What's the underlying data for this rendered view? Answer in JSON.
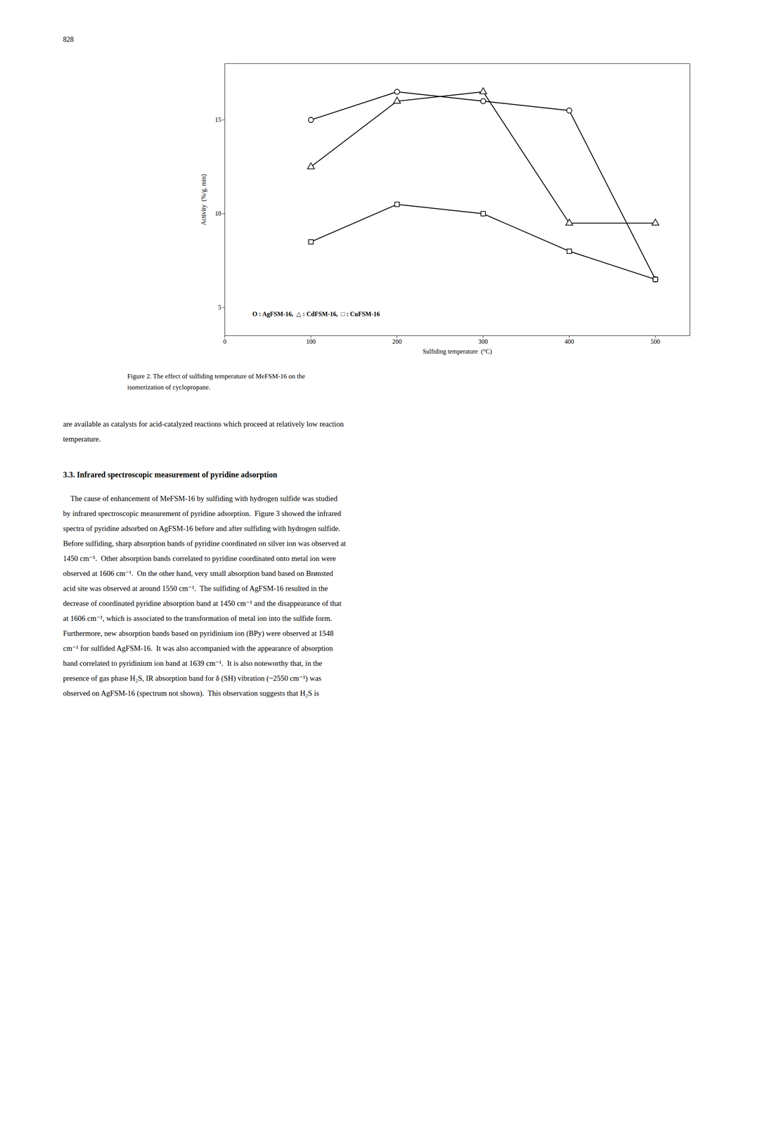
{
  "page_number": "828",
  "chart_data": {
    "type": "line",
    "x": [
      100,
      200,
      300,
      400,
      500
    ],
    "series": [
      {
        "name": "AgFSM-16",
        "color": "#000000",
        "marker": "circle",
        "values": [
          15.0,
          16.5,
          16.0,
          15.5,
          6.5
        ]
      },
      {
        "name": "CdFSM-16",
        "color": "#000000",
        "marker": "triangle",
        "values": [
          12.5,
          16.0,
          16.5,
          9.5,
          9.5
        ]
      },
      {
        "name": "CuFSM-16",
        "color": "#000000",
        "marker": "square",
        "values": [
          8.5,
          10.5,
          10.0,
          8.0,
          6.5
        ]
      }
    ],
    "x_label": "Sulfiding temperature  (°C)",
    "y_label": "Activity  (%/g. min)",
    "xlim": [
      0,
      540
    ],
    "ylim": [
      3.5,
      18.0
    ],
    "xticks": [
      0,
      100,
      200,
      300,
      400,
      500
    ],
    "yticks": [
      5,
      10,
      15
    ],
    "annotations": [
      "O : AgFSM-16,  △ : CdFSM-16,  □ : CuFSM-16"
    ],
    "caption": [
      "Figure 2.  The effect of sulfiding temperature of MeFSM-16 on the",
      "isomerization of cyclopropane."
    ]
  },
  "para1_lines": [
    "are available as catalysts for acid-catalyzed reactions which proceed at relatively low reaction",
    "temperature."
  ],
  "section_header": "3.3.  Infrared spectroscopic measurement of pyridine adsorption",
  "para2_lines": [
    "    The cause of enhancement of MeFSM-16 by sulfiding with hydrogen sulfide was studied",
    "by infrared spectroscopic measurement of pyridine adsorption.  Figure 3 showed the infrared",
    "spectra of pyridine adsorbed on AgFSM-16 before and after sulfiding with hydrogen sulfide.",
    "Before sulfiding, sharp absorption bands of pyridine coordinated on silver ion was observed at",
    "1450 cm⁻¹.  Other absorption bands correlated to pyridine coordinated onto metal ion were",
    "observed at 1606 cm⁻¹.  On the other hand, very small absorption band based on Brønsted",
    "acid site was observed at around 1550 cm⁻¹.  The sulfiding of AgFSM-16 resulted in the",
    "decrease of coordinated pyridine absorption band at 1450 cm⁻¹ and the disappearance of that",
    "at 1606 cm⁻¹, which is associated to the transformation of metal ion into the sulfide form.",
    "Furthermore, new absorption bands based on pyridinium ion (BPy) were observed at 1548",
    "cm⁻¹ for sulfided AgFSM-16.  It was also accompanied with the appearance of absorption",
    "band correlated to pyridinium ion band at 1639 cm⁻¹.  It is also noteworthy that, in the",
    "presence of gas phase H₂S, IR absorption band for δ (SH) vibration (~2550 cm⁻¹) was",
    "observed on AgFSM-16 (spectrum not shown).  This observation suggests that H₂S is"
  ]
}
